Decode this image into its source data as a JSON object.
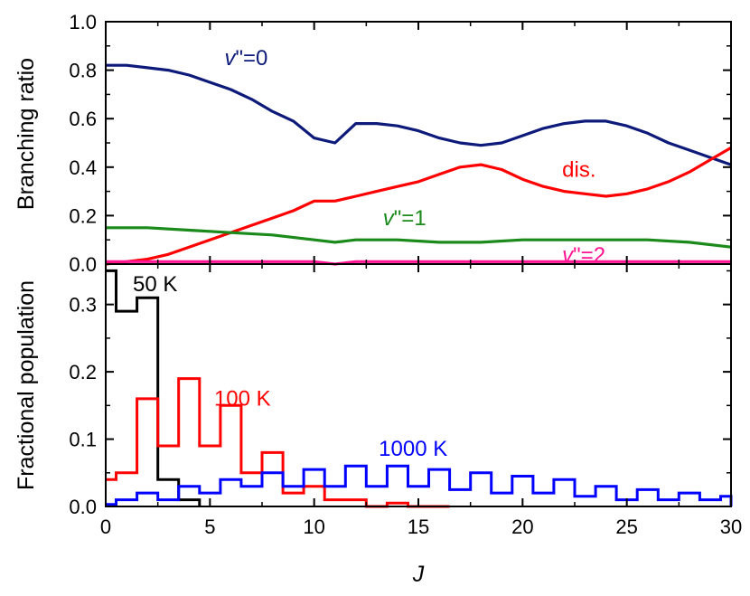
{
  "chart_data": [
    {
      "type": "line",
      "panel": "top",
      "ylabel": "Branching ratio",
      "ylim": [
        0,
        1.0
      ],
      "yticks": [
        "0.0",
        "0.2",
        "0.4",
        "0.6",
        "0.8",
        "1.0"
      ],
      "xlim": [
        0,
        30
      ],
      "series": [
        {
          "name": "v\"=0",
          "color": "#0d1a7a",
          "x": [
            0,
            1,
            2,
            3,
            4,
            5,
            6,
            7,
            8,
            9,
            10,
            11,
            12,
            13,
            14,
            15,
            16,
            17,
            18,
            19,
            20,
            21,
            22,
            23,
            24,
            25,
            26,
            27,
            28,
            29,
            30
          ],
          "y": [
            0.82,
            0.82,
            0.81,
            0.8,
            0.78,
            0.75,
            0.72,
            0.68,
            0.63,
            0.59,
            0.52,
            0.5,
            0.58,
            0.58,
            0.57,
            0.55,
            0.52,
            0.5,
            0.49,
            0.5,
            0.53,
            0.56,
            0.58,
            0.59,
            0.59,
            0.57,
            0.54,
            0.5,
            0.47,
            0.44,
            0.41
          ]
        },
        {
          "name": "dis.",
          "color": "#ff0000",
          "x": [
            0,
            1,
            2,
            3,
            4,
            5,
            6,
            7,
            8,
            9,
            10,
            11,
            12,
            13,
            14,
            15,
            16,
            17,
            18,
            19,
            20,
            21,
            22,
            23,
            24,
            25,
            26,
            27,
            28,
            29,
            30
          ],
          "y": [
            0.0,
            0.01,
            0.02,
            0.04,
            0.07,
            0.1,
            0.13,
            0.16,
            0.19,
            0.22,
            0.26,
            0.26,
            0.28,
            0.3,
            0.32,
            0.34,
            0.37,
            0.4,
            0.41,
            0.39,
            0.35,
            0.32,
            0.3,
            0.29,
            0.28,
            0.29,
            0.31,
            0.34,
            0.38,
            0.43,
            0.48
          ]
        },
        {
          "name": "v\"=1",
          "color": "#1a8a1a",
          "x": [
            0,
            2,
            4,
            6,
            8,
            10,
            11,
            12,
            14,
            16,
            18,
            20,
            22,
            24,
            26,
            28,
            30
          ],
          "y": [
            0.15,
            0.15,
            0.14,
            0.13,
            0.12,
            0.1,
            0.09,
            0.1,
            0.1,
            0.09,
            0.09,
            0.1,
            0.1,
            0.1,
            0.1,
            0.09,
            0.07
          ]
        },
        {
          "name": "v\"=2",
          "color": "#ff1493",
          "x": [
            0,
            5,
            10,
            11,
            12,
            15,
            20,
            25,
            30
          ],
          "y": [
            0.01,
            0.01,
            0.01,
            0.0,
            0.01,
            0.01,
            0.01,
            0.01,
            0.01
          ]
        }
      ],
      "annotations": [
        {
          "text": "v\"=0",
          "color": "#0d1a7a"
        },
        {
          "text": "dis.",
          "color": "#ff0000"
        },
        {
          "text": "v\"=1",
          "color": "#1a8a1a"
        },
        {
          "text": "v\"=2",
          "color": "#ff1493"
        }
      ]
    },
    {
      "type": "step",
      "panel": "bottom",
      "xlabel": "J",
      "ylabel": "Fractional population",
      "ylim": [
        0,
        0.36
      ],
      "yticks": [
        "0.0",
        "0.1",
        "0.2",
        "0.3"
      ],
      "xlim": [
        0,
        30
      ],
      "xticks": [
        "0",
        "5",
        "10",
        "15",
        "20",
        "25",
        "30"
      ],
      "series": [
        {
          "name": "50 K",
          "color": "#000000",
          "x": [
            0,
            1,
            2,
            3,
            4
          ],
          "y": [
            0.35,
            0.29,
            0.31,
            0.04,
            0.01
          ]
        },
        {
          "name": "100 K",
          "color": "#ff0000",
          "x": [
            0,
            1,
            2,
            3,
            4,
            5,
            6,
            7,
            8,
            9,
            10,
            11,
            12,
            13,
            14,
            15,
            16
          ],
          "y": [
            0.04,
            0.05,
            0.16,
            0.09,
            0.19,
            0.09,
            0.15,
            0.05,
            0.08,
            0.02,
            0.03,
            0.01,
            0.01,
            0.0,
            0.005,
            0.0,
            0.0
          ]
        },
        {
          "name": "1000 K",
          "color": "#0000ff",
          "x": [
            0,
            1,
            2,
            3,
            4,
            5,
            6,
            7,
            8,
            9,
            10,
            11,
            12,
            13,
            14,
            15,
            16,
            17,
            18,
            19,
            20,
            21,
            22,
            23,
            24,
            25,
            26,
            27,
            28,
            29,
            30
          ],
          "y": [
            0.003,
            0.01,
            0.02,
            0.01,
            0.03,
            0.02,
            0.04,
            0.03,
            0.05,
            0.03,
            0.055,
            0.03,
            0.06,
            0.03,
            0.06,
            0.03,
            0.055,
            0.025,
            0.05,
            0.02,
            0.045,
            0.02,
            0.04,
            0.015,
            0.03,
            0.01,
            0.025,
            0.01,
            0.02,
            0.01,
            0.015
          ]
        }
      ],
      "annotations": [
        {
          "text": "50 K",
          "color": "#000000"
        },
        {
          "text": "100 K",
          "color": "#ff0000"
        },
        {
          "text": "1000 K",
          "color": "#0000ff"
        }
      ]
    }
  ]
}
